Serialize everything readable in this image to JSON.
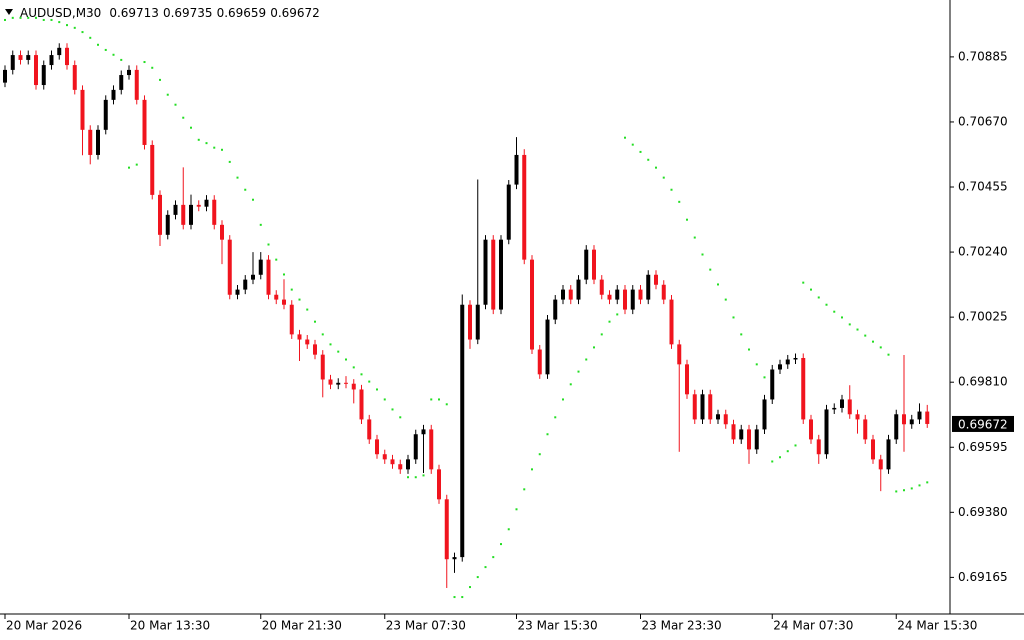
{
  "chart_data": {
    "type": "candlestick",
    "title": "AUDUSD,M30",
    "up_color": "#000000",
    "down_color": "#f0141e",
    "sar_color": "#22dd22",
    "ylim": [
      0.69044,
      0.71073
    ],
    "yticks": [
      0.70885,
      {
        "value": 0.7067,
        "label": "0.70670"
      },
      0.70455,
      {
        "value": 0.7024,
        "label": "0.70240"
      },
      0.70025,
      {
        "value": 0.6981,
        "label": "0.69810"
      },
      0.69595,
      {
        "value": 0.6938,
        "label": "0.69380"
      },
      0.69165
    ],
    "categories": [
      "20 Mar 2026",
      null,
      null,
      null,
      null,
      null,
      null,
      null,
      null,
      null,
      null,
      null,
      null,
      null,
      null,
      null,
      "20 Mar 13:30",
      null,
      null,
      null,
      null,
      null,
      null,
      null,
      null,
      null,
      null,
      null,
      null,
      null,
      null,
      null,
      null,
      "20 Mar 21:30",
      null,
      null,
      null,
      null,
      null,
      null,
      null,
      null,
      null,
      null,
      null,
      null,
      null,
      null,
      null,
      "23 Mar 07:30",
      null,
      null,
      null,
      null,
      null,
      null,
      null,
      null,
      null,
      null,
      null,
      null,
      null,
      null,
      null,
      null,
      "23 Mar 15:30",
      null,
      null,
      null,
      null,
      null,
      null,
      null,
      null,
      null,
      null,
      null,
      null,
      null,
      null,
      null,
      "23 Mar 23:30",
      null,
      null,
      null,
      null,
      null,
      null,
      null,
      null,
      null,
      null,
      null,
      null,
      null,
      null,
      null,
      null,
      "24 Mar 07:30",
      null,
      null,
      null,
      null,
      null,
      null,
      null,
      null,
      null,
      null,
      null,
      null,
      null,
      null,
      null,
      "24 Mar 15:30",
      null,
      null,
      null,
      null
    ],
    "open": [
      0.708,
      0.70842,
      0.70891,
      0.70875,
      0.70891,
      0.70792,
      0.70858,
      0.70891,
      0.70915,
      0.70858,
      0.70776,
      0.70644,
      0.70561,
      0.70644,
      0.70743,
      0.70776,
      0.70825,
      0.70842,
      0.70743,
      0.70594,
      0.70429,
      0.70297,
      0.70363,
      0.70396,
      0.7033,
      0.70396,
      0.7039,
      0.70413,
      0.7033,
      0.70281,
      0.70099,
      0.70116,
      0.70149,
      0.70165,
      0.70215,
      0.70099,
      0.70083,
      0.70066,
      0.69968,
      0.69951,
      0.69935,
      0.69901,
      0.69819,
      0.69802,
      0.69808,
      0.69805,
      0.69786,
      0.69687,
      0.69621,
      0.69572,
      0.69555,
      0.69539,
      0.69522,
      0.69555,
      0.69638,
      0.69654,
      0.69522,
      0.69423,
      0.69225,
      0.69232,
      0.70066,
      0.69951,
      0.70066,
      0.70281,
      0.7005,
      0.70281,
      0.70463,
      0.70561,
      0.70215,
      0.69918,
      0.69836,
      0.70017,
      0.70083,
      0.70116,
      0.70083,
      0.70149,
      0.70248,
      0.70149,
      0.70099,
      0.70083,
      0.70116,
      0.7005,
      0.70116,
      0.70083,
      0.70165,
      0.70132,
      0.70083,
      0.69935,
      0.69869,
      0.6977,
      0.69687,
      0.6977,
      0.69687,
      0.69704,
      0.69671,
      0.69621,
      0.69654,
      0.69588,
      0.69654,
      0.69753,
      0.69852,
      0.69869,
      0.69885,
      0.6989,
      0.69687,
      0.69621,
      0.69572,
      0.6972,
      0.69725,
      0.69753,
      0.69704,
      0.69687,
      0.69621,
      0.69555,
      0.69522,
      0.69621,
      0.69704,
      0.69671,
      0.69687,
      0.69713
    ],
    "high": [
      0.70857,
      0.70906,
      0.70906,
      0.70906,
      0.70906,
      0.70873,
      0.70906,
      0.7093,
      0.7093,
      0.70873,
      0.70791,
      0.70659,
      0.70659,
      0.70758,
      0.70791,
      0.7084,
      0.70857,
      0.70857,
      0.70758,
      0.70609,
      0.70444,
      0.70378,
      0.70411,
      0.7052,
      0.7043,
      0.70411,
      0.70428,
      0.70428,
      0.70345,
      0.70296,
      0.70131,
      0.70164,
      0.7024,
      0.7024,
      0.7023,
      0.70114,
      0.7015,
      0.70081,
      0.69983,
      0.69966,
      0.6995,
      0.69916,
      0.69834,
      0.69823,
      0.6983,
      0.6982,
      0.69801,
      0.69702,
      0.69636,
      0.69587,
      0.6957,
      0.69554,
      0.6957,
      0.69653,
      0.69669,
      0.69669,
      0.69537,
      0.69438,
      0.69247,
      0.701,
      0.70081,
      0.7048,
      0.70296,
      0.70296,
      0.70296,
      0.70478,
      0.7062,
      0.7058,
      0.7023,
      0.69933,
      0.70032,
      0.70098,
      0.70131,
      0.70131,
      0.70164,
      0.70263,
      0.70263,
      0.70164,
      0.70114,
      0.70131,
      0.70131,
      0.70131,
      0.70131,
      0.7018,
      0.7018,
      0.70147,
      0.70098,
      0.6995,
      0.69884,
      0.69785,
      0.69785,
      0.69785,
      0.69719,
      0.69719,
      0.69686,
      0.69669,
      0.69669,
      0.69669,
      0.69768,
      0.69867,
      0.69884,
      0.699,
      0.69905,
      0.69905,
      0.69702,
      0.69636,
      0.69735,
      0.6974,
      0.69768,
      0.698,
      0.69719,
      0.69702,
      0.69636,
      0.6957,
      0.69636,
      0.69719,
      0.699,
      0.69702,
      0.6974,
      0.69735
    ],
    "low": [
      0.70785,
      0.70827,
      0.7086,
      0.7086,
      0.70777,
      0.70777,
      0.70843,
      0.70876,
      0.70843,
      0.70761,
      0.7056,
      0.7053,
      0.70546,
      0.70629,
      0.70728,
      0.70761,
      0.7081,
      0.70728,
      0.70579,
      0.70414,
      0.7026,
      0.70282,
      0.70348,
      0.70315,
      0.70315,
      0.70375,
      0.70375,
      0.70315,
      0.702,
      0.70084,
      0.70084,
      0.70101,
      0.70134,
      0.7015,
      0.70084,
      0.70068,
      0.70051,
      0.69953,
      0.6988,
      0.6992,
      0.69886,
      0.6976,
      0.69787,
      0.69787,
      0.6979,
      0.6974,
      0.69672,
      0.69606,
      0.69557,
      0.6954,
      0.69524,
      0.69507,
      0.69507,
      0.6954,
      0.6951,
      0.69507,
      0.69408,
      0.6913,
      0.6918,
      0.69217,
      0.6992,
      0.69936,
      0.70051,
      0.70035,
      0.70035,
      0.70266,
      0.70448,
      0.702,
      0.69903,
      0.69821,
      0.69821,
      0.70002,
      0.70068,
      0.70068,
      0.70068,
      0.70134,
      0.70134,
      0.70084,
      0.70068,
      0.70068,
      0.70035,
      0.70035,
      0.70068,
      0.70068,
      0.70117,
      0.70068,
      0.6992,
      0.6958,
      0.69755,
      0.69672,
      0.69672,
      0.69672,
      0.69672,
      0.69656,
      0.69606,
      0.69606,
      0.6954,
      0.69573,
      0.69639,
      0.69738,
      0.69837,
      0.69854,
      0.6987,
      0.69672,
      0.69606,
      0.6954,
      0.69557,
      0.69705,
      0.6971,
      0.69689,
      0.6964,
      0.69606,
      0.6954,
      0.6945,
      0.69507,
      0.69606,
      0.6958,
      0.69656,
      0.69672,
      0.69659
    ],
    "close": [
      0.70842,
      0.70891,
      0.70875,
      0.70891,
      0.70792,
      0.70858,
      0.70891,
      0.70915,
      0.70858,
      0.70776,
      0.70644,
      0.70561,
      0.70644,
      0.70743,
      0.70776,
      0.70825,
      0.70842,
      0.70743,
      0.70594,
      0.70429,
      0.70297,
      0.70363,
      0.70396,
      0.7033,
      0.70396,
      0.7039,
      0.70413,
      0.7033,
      0.70281,
      0.70099,
      0.70116,
      0.70149,
      0.70165,
      0.70215,
      0.70099,
      0.70083,
      0.70066,
      0.69968,
      0.69951,
      0.69935,
      0.69901,
      0.69819,
      0.69802,
      0.69808,
      0.69805,
      0.69786,
      0.69687,
      0.69621,
      0.69572,
      0.69555,
      0.69539,
      0.69522,
      0.69555,
      0.69638,
      0.69654,
      0.69522,
      0.69423,
      0.69225,
      0.69232,
      0.70066,
      0.69951,
      0.70066,
      0.70281,
      0.7005,
      0.70281,
      0.70463,
      0.70561,
      0.70215,
      0.69918,
      0.69836,
      0.70017,
      0.70083,
      0.70116,
      0.70083,
      0.70149,
      0.70248,
      0.70149,
      0.70099,
      0.70083,
      0.70116,
      0.7005,
      0.70116,
      0.70083,
      0.70165,
      0.70132,
      0.70083,
      0.69935,
      0.69869,
      0.6977,
      0.69687,
      0.6977,
      0.69687,
      0.69704,
      0.69671,
      0.69621,
      0.69654,
      0.69588,
      0.69654,
      0.69753,
      0.69852,
      0.69869,
      0.69885,
      0.6989,
      0.69687,
      0.69621,
      0.69572,
      0.6972,
      0.69725,
      0.69753,
      0.69704,
      0.69687,
      0.69621,
      0.69555,
      0.69522,
      0.69621,
      0.69704,
      0.69671,
      0.69687,
      0.69713,
      0.69672
    ],
    "sar": [
      0.71007,
      0.71014,
      0.71014,
      0.71014,
      0.71014,
      0.71007,
      0.71007,
      0.71,
      0.7099,
      0.70981,
      0.70967,
      0.70948,
      0.70925,
      0.70908,
      0.70892,
      0.70875,
      0.70519,
      0.70529,
      0.70868,
      0.70849,
      0.70809,
      0.7076,
      0.70727,
      0.70684,
      0.70651,
      0.70611,
      0.706,
      0.70585,
      0.70578,
      0.70538,
      0.70486,
      0.70446,
      0.70413,
      0.7033,
      0.70265,
      0.70215,
      0.70166,
      0.70116,
      0.70083,
      0.7005,
      0.7001,
      0.69968,
      0.69935,
      0.69911,
      0.69885,
      0.69859,
      0.69836,
      0.69812,
      0.69786,
      0.69753,
      0.6972,
      0.69694,
      0.69496,
      0.69496,
      0.69502,
      0.69753,
      0.69753,
      0.69737,
      0.691,
      0.691,
      0.69133,
      0.69166,
      0.69199,
      0.69232,
      0.69275,
      0.69324,
      0.6939,
      0.69456,
      0.69522,
      0.69572,
      0.69638,
      0.69694,
      0.69753,
      0.69803,
      0.69845,
      0.69885,
      0.69925,
      0.69968,
      0.7001,
      0.70034,
      0.70618,
      0.70595,
      0.70571,
      0.70545,
      0.70519,
      0.70486,
      0.70446,
      0.70406,
      0.70347,
      0.70288,
      0.70232,
      0.70182,
      0.70133,
      0.70083,
      0.70024,
      0.69968,
      0.69918,
      0.69869,
      0.69826,
      0.69548,
      0.69562,
      0.69582,
      0.69601,
      0.70139,
      0.70116,
      0.7009,
      0.70066,
      0.70043,
      0.70024,
      0.70001,
      0.69984,
      0.69964,
      0.69944,
      0.69925,
      0.69901,
      0.69449,
      0.69453,
      0.69459,
      0.69469,
      0.69479
    ]
  }
}
